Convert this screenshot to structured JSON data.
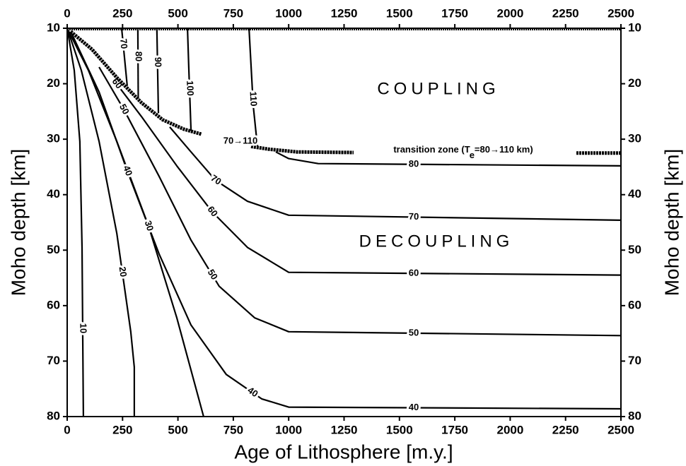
{
  "chart_data": {
    "type": "line",
    "xlabel": "Age of Lithosphere [m.y.]",
    "ylabel": "Moho depth [km]",
    "xlim": [
      0,
      2500
    ],
    "ylim": [
      80,
      10
    ],
    "xticks": [
      0,
      250,
      500,
      750,
      1000,
      1250,
      1500,
      1750,
      2000,
      2250,
      2500
    ],
    "yticks": [
      10,
      20,
      30,
      40,
      50,
      60,
      70,
      80
    ],
    "color": "#000000",
    "series": [
      {
        "name": "10",
        "x": [
          0,
          32,
          57,
          67,
          73
        ],
        "values": [
          10,
          17.6,
          30.4,
          49.5,
          80
        ]
      },
      {
        "name": "20",
        "x": [
          0,
          64,
          144,
          224,
          287,
          303,
          303
        ],
        "values": [
          10,
          17.6,
          30.4,
          47,
          64.7,
          71.1,
          80
        ]
      },
      {
        "name": "30",
        "x": [
          0,
          96,
          224,
          367,
          495,
          616
        ],
        "values": [
          10,
          17.6,
          30.4,
          45.6,
          62.2,
          80
        ]
      },
      {
        "name": "40",
        "x": [
          16,
          144,
          271,
          415,
          559,
          718,
          878,
          1000,
          2500
        ],
        "values": [
          10.6,
          21.5,
          35.7,
          50.7,
          63.5,
          72.4,
          76.8,
          78.3,
          78.6
        ]
      },
      {
        "name": "50",
        "x": [
          144,
          255,
          415,
          559,
          686,
          846,
          1000,
          2500
        ],
        "values": [
          17,
          24.6,
          36.7,
          48.2,
          56.5,
          62.2,
          64.7,
          65.4
        ]
      },
      {
        "name": "60",
        "x": [
          208,
          335,
          495,
          655,
          814,
          1000,
          2500
        ],
        "values": [
          19.2,
          25.9,
          34.8,
          43.1,
          49.5,
          54,
          54.5
        ]
      },
      {
        "name": "70",
        "x": [
          463,
          559,
          670,
          814,
          1000,
          2500
        ],
        "values": [
          27.8,
          32.3,
          37.4,
          41.2,
          43.7,
          44.6
        ]
      },
      {
        "name": "80",
        "x": [
          942,
          1000,
          1133,
          2500
        ],
        "values": [
          32.3,
          33.5,
          34.4,
          34.8
        ]
      },
      {
        "name": "70",
        "x": [
          246,
          271
        ],
        "values": [
          10,
          20.4
        ]
      },
      {
        "name": "80",
        "x": [
          319,
          321
        ],
        "values": [
          10,
          22.7
        ]
      },
      {
        "name": "90",
        "x": [
          405,
          412
        ],
        "values": [
          10,
          25.3
        ]
      },
      {
        "name": "100",
        "x": [
          543,
          549,
          559
        ],
        "values": [
          10,
          17,
          28.5
        ]
      },
      {
        "name": "110",
        "x": [
          821,
          840,
          859
        ],
        "values": [
          10,
          24,
          31.3
        ]
      }
    ],
    "transition": {
      "x": [
        16,
        112,
        224,
        335,
        431,
        527,
        607,
        720,
        830,
        910,
        1038,
        1293,
        1800,
        2299,
        2500
      ],
      "values": [
        10.6,
        13.8,
        18.9,
        23.4,
        26.5,
        28.2,
        29.1,
        null,
        31.3,
        31.8,
        32.3,
        32.4,
        null,
        32.5,
        32.5
      ]
    },
    "annotations": [
      "COUPLING",
      "DECOUPLING",
      "70→110"
    ],
    "transition_label": [
      "transition zone (T",
      "e",
      "=80→110 km)"
    ]
  }
}
